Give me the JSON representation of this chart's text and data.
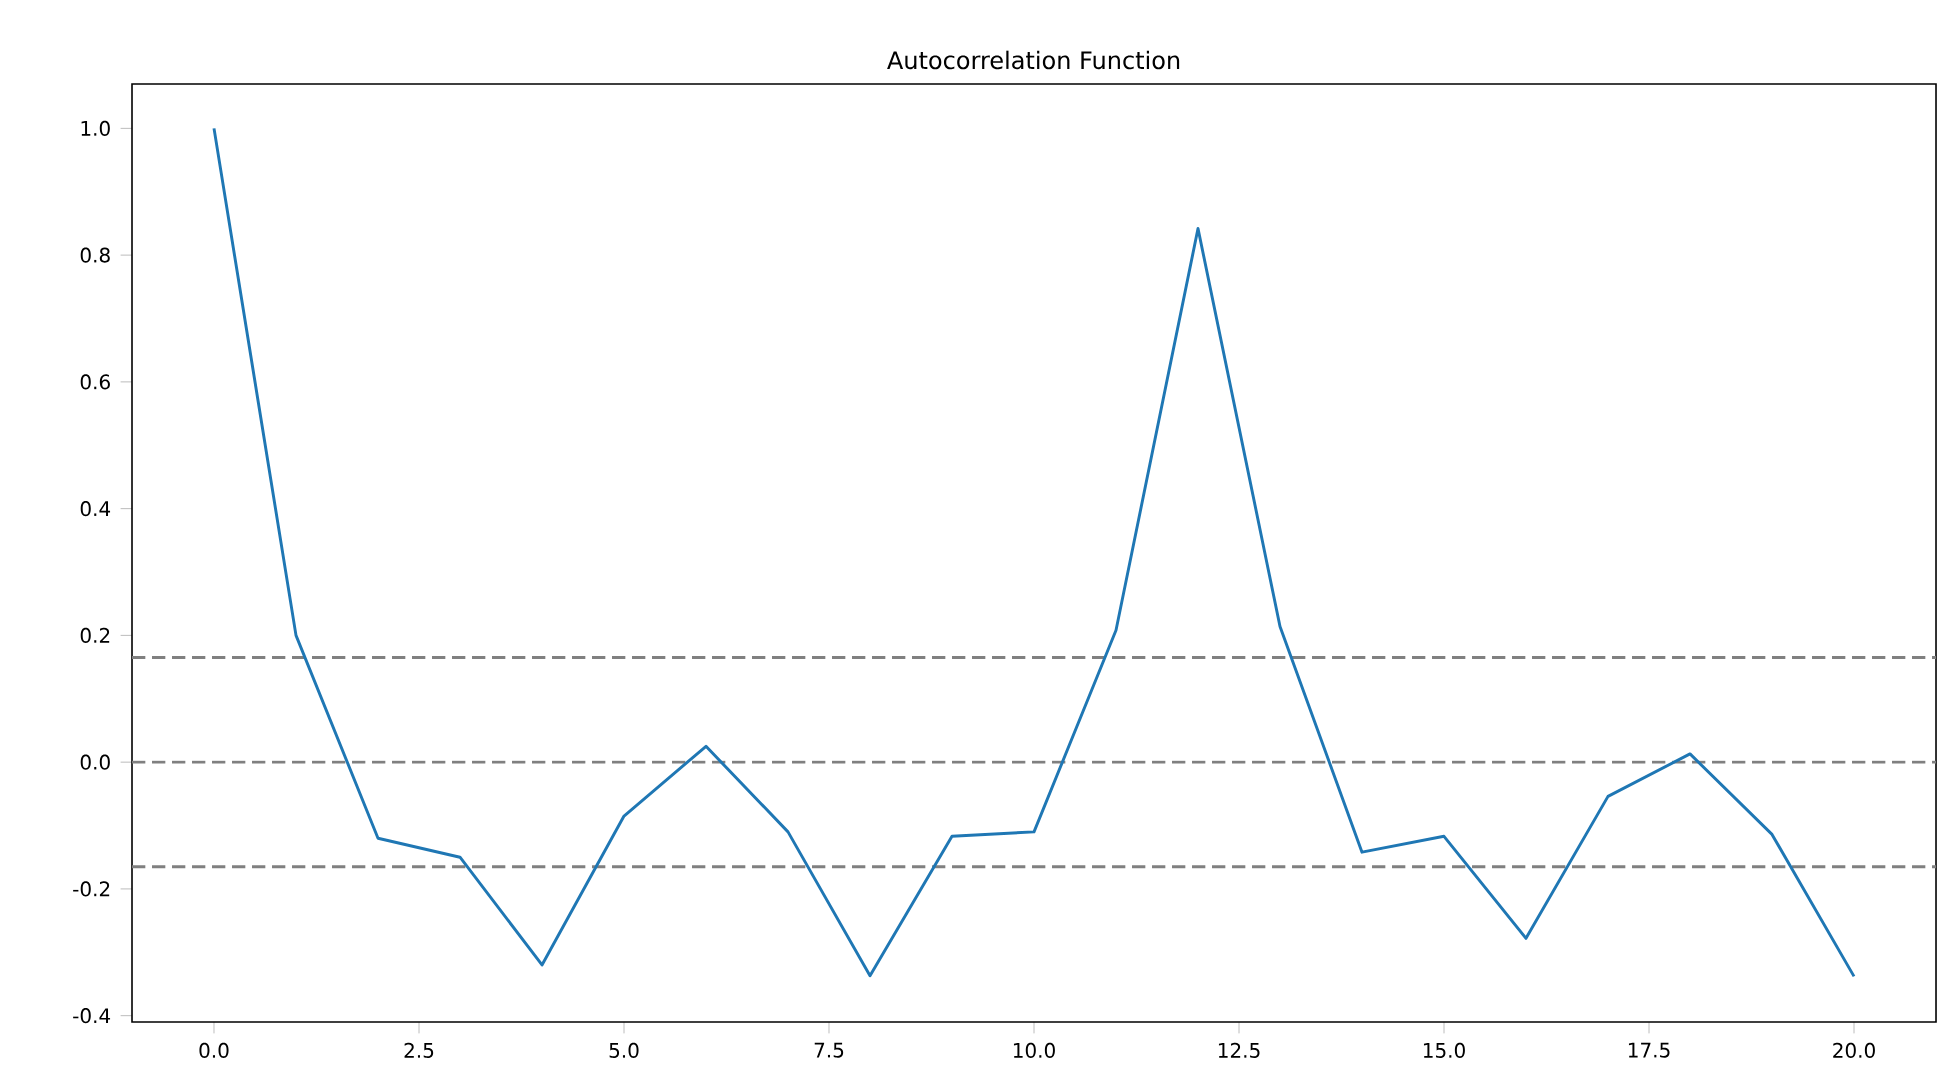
{
  "chart_data": {
    "type": "line",
    "title": "Autocorrelation Function",
    "x": [
      0,
      1,
      2,
      3,
      4,
      5,
      6,
      7,
      8,
      9,
      10,
      11,
      12,
      13,
      14,
      15,
      16,
      17,
      18,
      19,
      20
    ],
    "series": [
      {
        "color": "#1f77b4",
        "values": [
          1.0,
          0.2,
          -0.12,
          -0.15,
          -0.32,
          -0.085,
          0.025,
          -0.11,
          -0.337,
          -0.117,
          -0.11,
          0.208,
          0.842,
          0.214,
          -0.142,
          -0.117,
          -0.278,
          -0.054,
          0.013,
          -0.114,
          -0.338
        ]
      }
    ],
    "xlim": [
      -1,
      21
    ],
    "ylim": [
      -0.41,
      1.07
    ],
    "xticks": [
      {
        "value": 0,
        "label": "0.0"
      },
      {
        "value": 2.5,
        "label": "2.5"
      },
      {
        "value": 5,
        "label": "5.0"
      },
      {
        "value": 7.5,
        "label": "7.5"
      },
      {
        "value": 10,
        "label": "10.0"
      },
      {
        "value": 12.5,
        "label": "12.5"
      },
      {
        "value": 15,
        "label": "15.0"
      },
      {
        "value": 17.5,
        "label": "17.5"
      },
      {
        "value": 20,
        "label": "20.0"
      }
    ],
    "yticks": [
      {
        "value": -0.4,
        "label": "-0.4"
      },
      {
        "value": -0.2,
        "label": "-0.2"
      },
      {
        "value": 0,
        "label": "0.0"
      },
      {
        "value": 0.2,
        "label": "0.2"
      },
      {
        "value": 0.4,
        "label": "0.4"
      },
      {
        "value": 0.6,
        "label": "0.6"
      },
      {
        "value": 0.8,
        "label": "0.8"
      },
      {
        "value": 1.0,
        "label": "1.0"
      }
    ],
    "ref_lines": [
      {
        "axis": "y",
        "value": 0.165,
        "color": "#808080",
        "line_style": "dashed"
      },
      {
        "axis": "y",
        "value": 0,
        "color": "#808080",
        "line_style": "dashed"
      },
      {
        "axis": "y",
        "value": -0.165,
        "color": "#808080",
        "line_style": "dashed"
      }
    ],
    "marker": "none",
    "line_style": "solid"
  }
}
